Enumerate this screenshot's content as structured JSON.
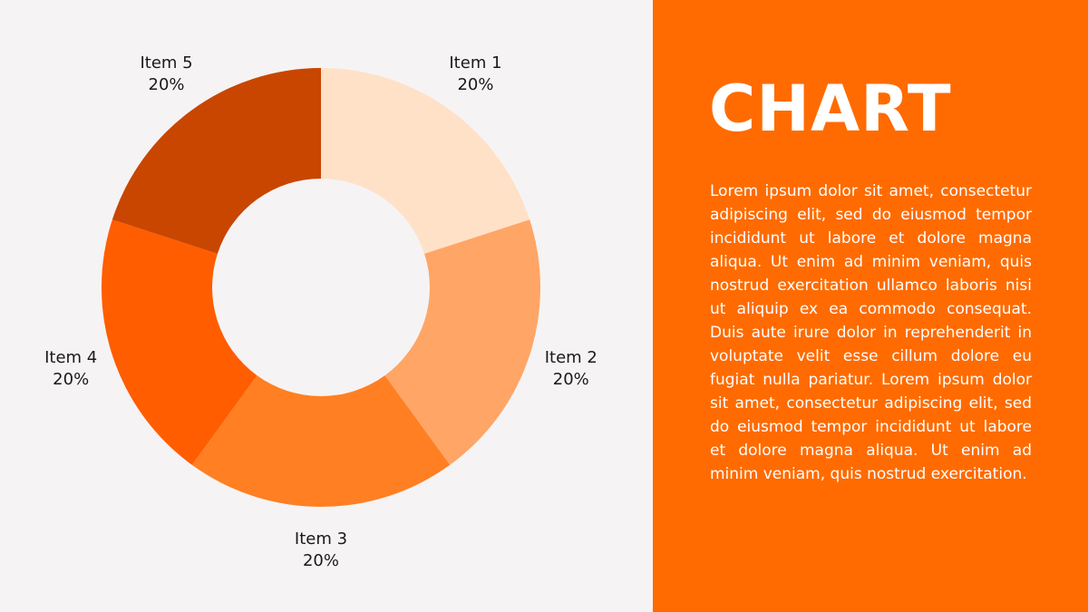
{
  "colors": {
    "background": "#f6f3f4",
    "panel": "#ff6b00"
  },
  "panel": {
    "title": "CHART",
    "body": "Lorem ipsum dolor sit amet, consectetur adipiscing elit, sed do eiusmod tempor incididunt ut labore et dolore magna aliqua. Ut enim ad minim veniam, quis nostrud exercitation ullamco laboris nisi ut aliquip ex ea commodo consequat. Duis aute irure dolor in reprehenderit in voluptate velit esse cillum dolore eu fugiat nulla pariatur. Lorem ipsum dolor sit amet, consectetur adipiscing elit, sed do eiusmod tempor incididunt ut labore et dolore magna aliqua. Ut enim ad minim veniam, quis nostrud exercitation."
  },
  "chart_data": {
    "type": "pie",
    "title": "",
    "donut": true,
    "categories": [
      "Item 1",
      "Item 2",
      "Item 3",
      "Item 4",
      "Item 5"
    ],
    "values": [
      20,
      20,
      20,
      20,
      20
    ],
    "value_labels": [
      "20%",
      "20%",
      "20%",
      "20%",
      "20%"
    ],
    "colors": [
      "#ffe1c8",
      "#ffa566",
      "#ff7f22",
      "#ff5d00",
      "#c84600"
    ]
  }
}
